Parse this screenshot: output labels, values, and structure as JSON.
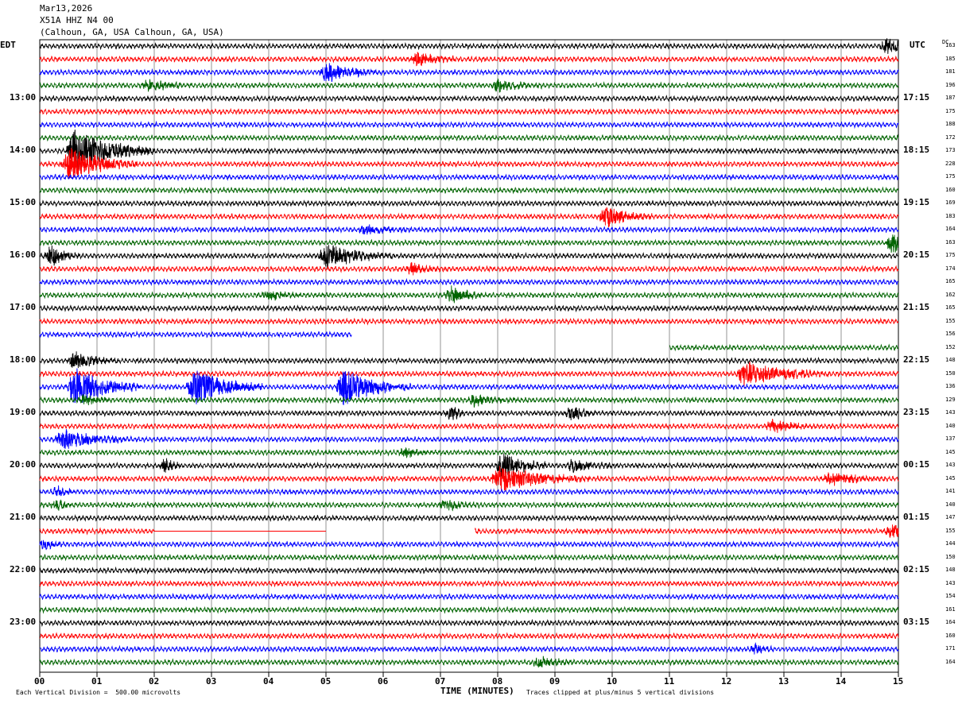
{
  "header": {
    "date": "Mar13,2026",
    "station": "X51A HHZ N4 00",
    "location": "(Calhoun, GA, USA Calhoun, GA, USA)"
  },
  "left_zone_label": "EDT",
  "right_zone_label": "UTC",
  "dc_header": "DC",
  "footer": {
    "scale": "Each Vertical Division =  500.00 microvolts",
    "xlabel": "TIME (MINUTES)",
    "clip": "Traces clipped at plus/minus 5 vertical divisions"
  },
  "colors": {
    "black": "#000000",
    "red": "#ff0000",
    "blue": "#0000ff",
    "green": "#006400",
    "grid": "#000000"
  },
  "chart_data": {
    "type": "line",
    "title": "",
    "xlabel": "TIME (MINUTES)",
    "xlim": [
      0,
      15
    ],
    "x_ticks": [
      "00",
      "01",
      "02",
      "03",
      "04",
      "05",
      "06",
      "07",
      "08",
      "09",
      "10",
      "11",
      "12",
      "13",
      "14",
      "15"
    ],
    "edt_hour_labels": [
      "13:00",
      "14:00",
      "15:00",
      "16:00",
      "17:00",
      "18:00",
      "19:00",
      "20:00",
      "21:00",
      "22:00",
      "23:00"
    ],
    "utc_hour_labels": [
      "17:15",
      "18:15",
      "19:15",
      "20:15",
      "21:15",
      "22:15",
      "23:15",
      "00:15",
      "01:15",
      "02:15",
      "03:15"
    ],
    "trace_colors": [
      "black",
      "red",
      "blue",
      "green"
    ],
    "dc_offsets": [
      163,
      185,
      181,
      196,
      187,
      175,
      188,
      172,
      173,
      228,
      175,
      160,
      169,
      183,
      164,
      163,
      175,
      174,
      165,
      162,
      165,
      155,
      156,
      152,
      148,
      150,
      136,
      129,
      143,
      140,
      137,
      145,
      143,
      145,
      141,
      140,
      147,
      155,
      144,
      150,
      148,
      143,
      154,
      161,
      164,
      160,
      171,
      164
    ],
    "bursts": [
      [
        0,
        14.8,
        1.0,
        1.2
      ],
      [
        1,
        6.6,
        0.8,
        1.2
      ],
      [
        2,
        5.0,
        1.0,
        1.5
      ],
      [
        3,
        1.9,
        0.8,
        1.0
      ],
      [
        3,
        8.0,
        0.8,
        1.0
      ],
      [
        8,
        0.6,
        1.4,
        3.5
      ],
      [
        9,
        0.5,
        1.2,
        3.0
      ],
      [
        13,
        9.9,
        0.8,
        1.8
      ],
      [
        14,
        5.7,
        0.8,
        0.9
      ],
      [
        15,
        14.9,
        0.4,
        2.0
      ],
      [
        16,
        0.2,
        0.5,
        1.8
      ],
      [
        16,
        5.0,
        1.2,
        2.0
      ],
      [
        17,
        6.5,
        0.6,
        0.9
      ],
      [
        19,
        4.0,
        0.6,
        0.9
      ],
      [
        19,
        7.2,
        0.6,
        1.4
      ],
      [
        24,
        0.6,
        0.8,
        1.5
      ],
      [
        25,
        12.3,
        1.5,
        2.0
      ],
      [
        26,
        0.6,
        1.2,
        3.0
      ],
      [
        26,
        2.7,
        1.2,
        3.0
      ],
      [
        26,
        5.3,
        1.2,
        3.0
      ],
      [
        27,
        0.8,
        0.5,
        1.0
      ],
      [
        27,
        7.6,
        0.8,
        0.9
      ],
      [
        28,
        7.2,
        0.4,
        1.0
      ],
      [
        28,
        9.3,
        0.5,
        1.2
      ],
      [
        29,
        12.8,
        0.8,
        1.0
      ],
      [
        30,
        0.4,
        1.2,
        1.6
      ],
      [
        31,
        6.4,
        0.6,
        0.8
      ],
      [
        32,
        2.2,
        0.3,
        1.2
      ],
      [
        32,
        8.1,
        0.8,
        2.2
      ],
      [
        32,
        9.3,
        0.8,
        1.0
      ],
      [
        33,
        8.0,
        1.6,
        2.2
      ],
      [
        33,
        13.8,
        1.0,
        1.2
      ],
      [
        34,
        0.3,
        0.4,
        0.9
      ],
      [
        35,
        0.3,
        0.4,
        0.9
      ],
      [
        35,
        7.1,
        0.6,
        1.0
      ],
      [
        37,
        14.9,
        0.4,
        1.2
      ],
      [
        38,
        0.1,
        0.3,
        0.9
      ],
      [
        46,
        12.5,
        0.4,
        0.8
      ],
      [
        47,
        8.7,
        0.6,
        1.0
      ]
    ],
    "data_gaps": [
      [
        22,
        5.45,
        15
      ],
      [
        23,
        0,
        11.0
      ],
      [
        37,
        5.0,
        7.6
      ]
    ],
    "flat_segments": [
      [
        37,
        2.0,
        5.0
      ]
    ]
  }
}
